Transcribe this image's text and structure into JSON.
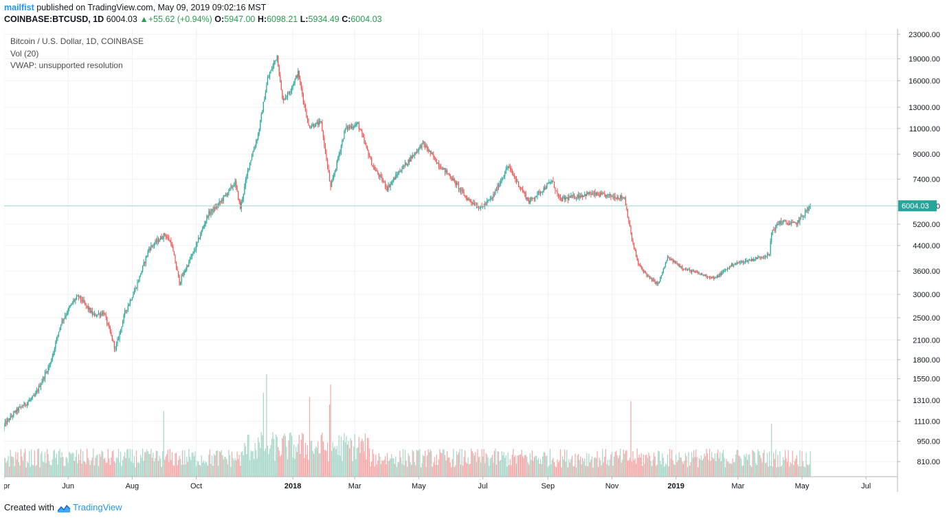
{
  "header": {
    "user": "mailfist",
    "published_text": "published on TradingView.com, May 09, 2019 09:02:16 MST"
  },
  "quote": {
    "symbol": "COINBASE:BTCUSD, 1D",
    "last": "6004.03",
    "change": "+55.62 (+0.94%)",
    "open_label": "O:",
    "open": "5947.00",
    "high_label": "H:",
    "high": "6098.21",
    "low_label": "L:",
    "low": "5934.49",
    "close_label": "C:",
    "close": "6004.03"
  },
  "legend": {
    "title": "Bitcoin / U.S. Dollar, 1D, COINBASE",
    "vol": "Vol (20)",
    "vwap": "VWAP: unsupported resolution"
  },
  "footer": {
    "created_with": "Created with",
    "brand": "TradingView"
  },
  "colors": {
    "up": "#26a69a",
    "down": "#ef5350",
    "up_vol": "#a5d6c7",
    "down_vol": "#f4a6a6",
    "grid": "#eef0f3",
    "price_line": "#9fd6cf"
  },
  "chart_data": {
    "type": "candlestick",
    "title": "Bitcoin / U.S. Dollar, 1D, COINBASE",
    "x_range": [
      "2017-04-01",
      "2019-07-31"
    ],
    "x_ticks": [
      {
        "date": "2017-04-01",
        "label": "Apr"
      },
      {
        "date": "2017-06-01",
        "label": "Jun"
      },
      {
        "date": "2017-08-01",
        "label": "Aug"
      },
      {
        "date": "2017-10-01",
        "label": "Oct"
      },
      {
        "date": "2018-01-01",
        "label": "2018",
        "bold": true
      },
      {
        "date": "2018-03-01",
        "label": "Mar"
      },
      {
        "date": "2018-05-01",
        "label": "May"
      },
      {
        "date": "2018-07-01",
        "label": "Jul"
      },
      {
        "date": "2018-09-01",
        "label": "Sep"
      },
      {
        "date": "2018-11-01",
        "label": "Nov"
      },
      {
        "date": "2019-01-01",
        "label": "2019",
        "bold": true
      },
      {
        "date": "2019-03-01",
        "label": "Mar"
      },
      {
        "date": "2019-05-01",
        "label": "May"
      },
      {
        "date": "2019-07-01",
        "label": "Jul"
      }
    ],
    "y_scale": "log",
    "y_range": [
      720,
      24000
    ],
    "y_ticks": [
      23000,
      19000,
      16000,
      13000,
      11000,
      9000,
      7400,
      6000,
      5200,
      4400,
      3600,
      3000,
      2500,
      2100,
      1800,
      1550,
      1310,
      1110,
      950,
      810
    ],
    "y_tick_labels": [
      "23000.00",
      "19000.00",
      "16000.00",
      "13000.00",
      "11000.00",
      "9000.00",
      "7400.00",
      "6000.00",
      "5200.00",
      "4400.00",
      "3600.00",
      "3000.00",
      "2500.00",
      "2100.00",
      "1800.00",
      "1550.00",
      "1310.00",
      "1110.00",
      "950.00",
      "810.00"
    ],
    "last_price": 6004.03,
    "last_price_label": "6004.03",
    "close_anchors": [
      [
        "2017-04-01",
        1080
      ],
      [
        "2017-04-12",
        1200
      ],
      [
        "2017-04-30",
        1350
      ],
      [
        "2017-05-15",
        1750
      ],
      [
        "2017-05-25",
        2400
      ],
      [
        "2017-06-06",
        2850
      ],
      [
        "2017-06-11",
        2950
      ],
      [
        "2017-06-25",
        2550
      ],
      [
        "2017-07-05",
        2600
      ],
      [
        "2017-07-16",
        1950
      ],
      [
        "2017-07-25",
        2600
      ],
      [
        "2017-08-05",
        3200
      ],
      [
        "2017-08-17",
        4300
      ],
      [
        "2017-09-01",
        4800
      ],
      [
        "2017-09-07",
        4500
      ],
      [
        "2017-09-15",
        3300
      ],
      [
        "2017-09-30",
        4300
      ],
      [
        "2017-10-12",
        5600
      ],
      [
        "2017-10-21",
        6000
      ],
      [
        "2017-11-07",
        7200
      ],
      [
        "2017-11-12",
        5900
      ],
      [
        "2017-11-20",
        8200
      ],
      [
        "2017-11-29",
        10500
      ],
      [
        "2017-12-08",
        16200
      ],
      [
        "2017-12-17",
        19500
      ],
      [
        "2017-12-22",
        13800
      ],
      [
        "2017-12-28",
        14500
      ],
      [
        "2018-01-06",
        17000
      ],
      [
        "2018-01-16",
        11200
      ],
      [
        "2018-01-28",
        11500
      ],
      [
        "2018-02-06",
        6900
      ],
      [
        "2018-02-20",
        11000
      ],
      [
        "2018-03-04",
        11400
      ],
      [
        "2018-03-18",
        8200
      ],
      [
        "2018-04-01",
        6900
      ],
      [
        "2018-04-13",
        7900
      ],
      [
        "2018-05-05",
        9800
      ],
      [
        "2018-05-20",
        8300
      ],
      [
        "2018-06-01",
        7500
      ],
      [
        "2018-06-15",
        6400
      ],
      [
        "2018-06-29",
        5900
      ],
      [
        "2018-07-10",
        6400
      ],
      [
        "2018-07-25",
        8200
      ],
      [
        "2018-08-05",
        7000
      ],
      [
        "2018-08-14",
        6200
      ],
      [
        "2018-09-05",
        7300
      ],
      [
        "2018-09-12",
        6300
      ],
      [
        "2018-10-10",
        6600
      ],
      [
        "2018-11-13",
        6400
      ],
      [
        "2018-11-20",
        4600
      ],
      [
        "2018-11-26",
        3800
      ],
      [
        "2018-12-07",
        3400
      ],
      [
        "2018-12-15",
        3250
      ],
      [
        "2018-12-24",
        4000
      ],
      [
        "2019-01-10",
        3650
      ],
      [
        "2019-02-07",
        3400
      ],
      [
        "2019-02-24",
        3800
      ],
      [
        "2019-03-15",
        3950
      ],
      [
        "2019-03-31",
        4100
      ],
      [
        "2019-04-02",
        4900
      ],
      [
        "2019-04-10",
        5300
      ],
      [
        "2019-04-25",
        5200
      ],
      [
        "2019-05-09",
        6004
      ]
    ],
    "volume_axis_max": 1790,
    "volume_spikes": [
      [
        "2017-12-07",
        1780
      ],
      [
        "2017-12-04",
        1460
      ],
      [
        "2018-02-06",
        1600
      ],
      [
        "2018-01-17",
        1380
      ],
      [
        "2018-02-05",
        1250
      ],
      [
        "2018-11-19",
        1310
      ],
      [
        "2017-08-31",
        1140
      ],
      [
        "2019-04-02",
        920
      ]
    ]
  }
}
